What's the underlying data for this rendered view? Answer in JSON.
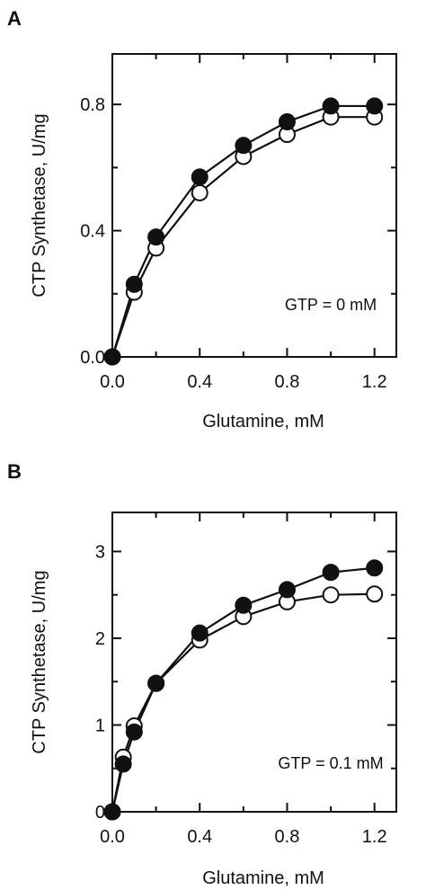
{
  "chart_data": [
    {
      "type": "line",
      "panel_label": "A",
      "xlabel": "Glutamine, mM",
      "ylabel": "CTP Synthetase, U/mg",
      "annotation": "GTP = 0 mM",
      "xlim": [
        0.0,
        1.3
      ],
      "ylim": [
        0.0,
        0.96
      ],
      "xticks": [
        "0.0",
        "0.4",
        "0.8",
        "1.2"
      ],
      "yticks": [
        "0.0",
        "0.4",
        "0.8"
      ],
      "series": [
        {
          "marker": "filled",
          "x": [
            0,
            0.1,
            0.2,
            0.4,
            0.6,
            0.8,
            1.0,
            1.2
          ],
          "y": [
            0.0,
            0.23,
            0.38,
            0.57,
            0.67,
            0.745,
            0.795,
            0.795
          ]
        },
        {
          "marker": "open",
          "x": [
            0,
            0.1,
            0.2,
            0.4,
            0.6,
            0.8,
            1.0,
            1.2
          ],
          "y": [
            0.0,
            0.205,
            0.345,
            0.52,
            0.635,
            0.705,
            0.76,
            0.76
          ]
        }
      ]
    },
    {
      "type": "line",
      "panel_label": "B",
      "xlabel": "Glutamine, mM",
      "ylabel": "CTP Synthetase, U/mg",
      "annotation": "GTP = 0.1 mM",
      "xlim": [
        0.0,
        1.3
      ],
      "ylim": [
        0,
        3.45
      ],
      "xticks": [
        "0.0",
        "0.4",
        "0.8",
        "1.2"
      ],
      "yticks": [
        "0",
        "1",
        "2",
        "3"
      ],
      "series": [
        {
          "marker": "filled",
          "x": [
            0,
            0.05,
            0.1,
            0.2,
            0.4,
            0.6,
            0.8,
            1.0,
            1.2
          ],
          "y": [
            0.0,
            0.55,
            0.92,
            1.48,
            2.06,
            2.38,
            2.56,
            2.76,
            2.81
          ]
        },
        {
          "marker": "open",
          "x": [
            0,
            0.05,
            0.1,
            0.2,
            0.4,
            0.6,
            0.8,
            1.0,
            1.2
          ],
          "y": [
            0.0,
            0.63,
            0.99,
            1.48,
            1.98,
            2.25,
            2.42,
            2.5,
            2.51
          ]
        }
      ]
    }
  ]
}
